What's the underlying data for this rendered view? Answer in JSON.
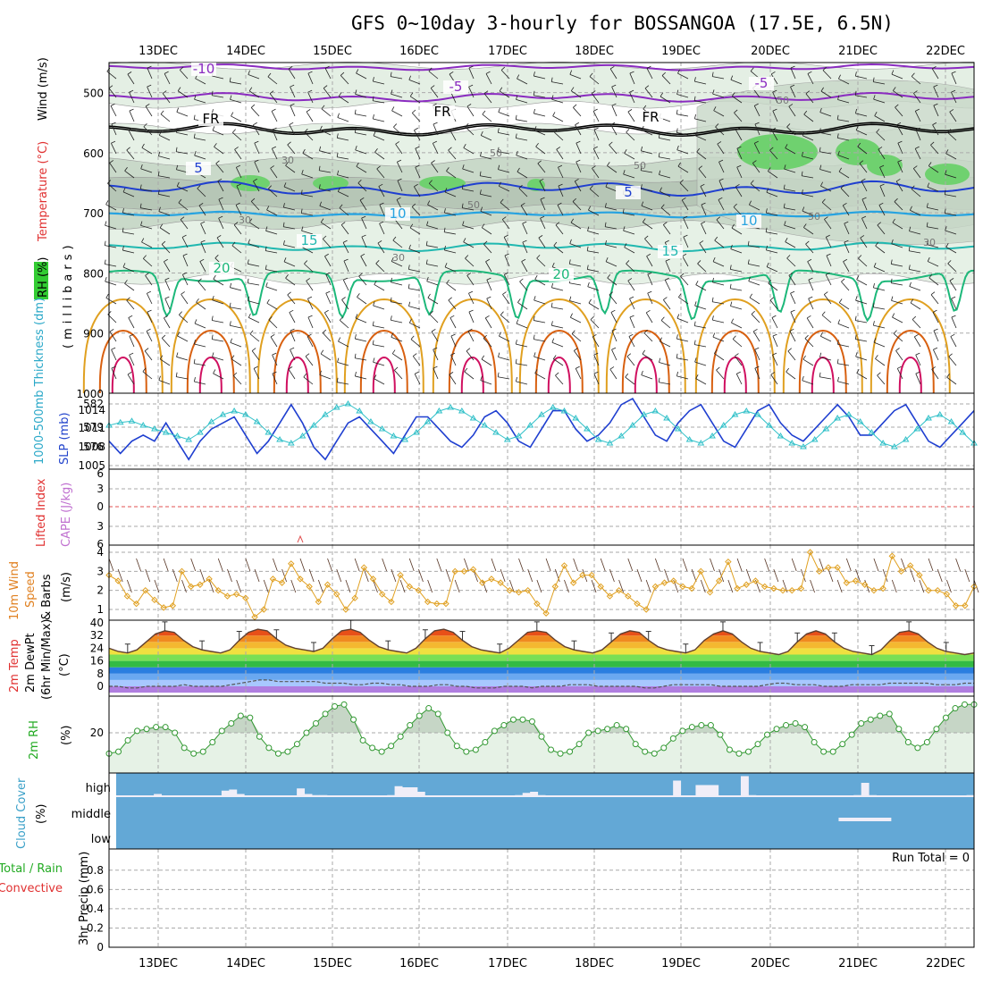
{
  "title": "GFS 0~10day 3-hourly for BOSSANGOA (17.5E, 6.5N)",
  "dates": [
    "13DEC",
    "14DEC",
    "15DEC",
    "16DEC",
    "17DEC",
    "18DEC",
    "19DEC",
    "20DEC",
    "21DEC",
    "22DEC"
  ],
  "colors": {
    "frame": "#000000",
    "grid": "#aaaaaa",
    "purple": "#8a2bc0",
    "blue": "#1f3fd0",
    "lightblue": "#27a3e0",
    "teal": "#20b8b0",
    "green": "#1db87a",
    "orange": "#e0a020",
    "darkorange": "#d86010",
    "magenta": "#d01060",
    "cyan": "#30c0c8",
    "rhgreen": "#33cc33",
    "cloud": "#63a8d6"
  },
  "chart_data": [
    {
      "type": "contour",
      "name": "upper",
      "ylabel_parts": [
        "RH (%)",
        "Temperature (°C)",
        "Wind (m/s)",
        "(millibars)"
      ],
      "y_ticks": [
        "500",
        "600",
        "700",
        "800",
        "900",
        "1000"
      ],
      "ylim": [
        1000,
        450
      ],
      "temperature_labels": [
        "-10",
        "-5",
        "-5",
        "FR",
        "FR",
        "FR",
        "5",
        "5",
        "10",
        "10",
        "15",
        "15",
        "20",
        "20"
      ],
      "rh_labels": [
        "30",
        "50",
        "30",
        "50",
        "50",
        "30",
        "50",
        "50",
        "30"
      ]
    },
    {
      "type": "line",
      "name": "thickness-slp",
      "ylabel_left": "1000-500mb Thickness (dm)",
      "ylabel_right": "SLP (mb)",
      "left_ticks": [
        "582",
        "579",
        "576"
      ],
      "right_ticks": [
        "1014",
        "1011",
        "1008",
        "1005"
      ],
      "series": [
        {
          "name": "SLP (mb)",
          "axis": "right",
          "values": [
            1009,
            1007,
            1009,
            1010,
            1009,
            1012,
            1009,
            1006,
            1009,
            1011,
            1012,
            1013,
            1010,
            1007,
            1009,
            1012,
            1015,
            1012,
            1008,
            1006,
            1009,
            1012,
            1013,
            1011,
            1009,
            1007,
            1010,
            1013,
            1013,
            1011,
            1009,
            1008,
            1010,
            1013,
            1014,
            1012,
            1009,
            1008,
            1011,
            1014,
            1014,
            1011,
            1009,
            1010,
            1012,
            1015,
            1016,
            1013,
            1010,
            1009,
            1012,
            1014,
            1015,
            1012,
            1009,
            1008,
            1011,
            1014,
            1015,
            1012,
            1010,
            1009,
            1011,
            1013,
            1015,
            1013,
            1010,
            1010,
            1012,
            1014,
            1015,
            1012,
            1009,
            1008,
            1010,
            1012,
            1014
          ]
        },
        {
          "name": "Thickness (dm)",
          "axis": "left",
          "values": [
            579,
            579.4,
            579.6,
            579,
            578.5,
            578,
            577.5,
            577,
            578,
            579.5,
            580.5,
            581,
            580.5,
            579.5,
            578,
            577,
            576.5,
            577.5,
            579,
            580.5,
            581.5,
            582,
            581,
            579.5,
            578.5,
            577.5,
            577,
            578,
            579.5,
            581,
            581.5,
            581,
            580,
            579,
            578,
            577,
            577.5,
            579,
            580.5,
            581.5,
            581,
            580,
            578.5,
            577,
            576.5,
            577.5,
            579,
            580.5,
            581,
            580,
            578.5,
            577,
            576.5,
            577.5,
            579,
            580.5,
            581,
            580.5,
            579,
            577.5,
            576.5,
            576,
            577,
            578.5,
            580,
            580.5,
            579.5,
            578,
            576.5,
            576,
            577,
            578.5,
            580,
            580.5,
            579.5,
            578,
            576.5
          ]
        }
      ]
    },
    {
      "type": "line",
      "name": "cape-li",
      "ylabel_left": "Lifted Index",
      "ylabel_right": "CAPE (J/kg)",
      "ticks": [
        "6",
        "3",
        "0",
        "3",
        "6"
      ],
      "ylim": [
        -6,
        6
      ]
    },
    {
      "type": "line",
      "name": "wind10m",
      "ylabel": "10m Wind Speed & Barbs (m/s)",
      "ticks": [
        "4",
        "3",
        "2",
        "1"
      ],
      "ylim": [
        0.6,
        4.2
      ],
      "values": [
        2.8,
        2.5,
        1.7,
        1.3,
        2.0,
        1.5,
        1.1,
        1.2,
        3.0,
        2.2,
        2.3,
        2.6,
        2.0,
        1.7,
        1.8,
        1.6,
        0.6,
        1.0,
        2.6,
        2.4,
        3.4,
        2.6,
        2.2,
        1.4,
        2.3,
        1.8,
        1.0,
        1.6,
        3.2,
        2.6,
        1.8,
        1.4,
        2.8,
        2.2,
        2.0,
        1.4,
        1.3,
        1.3,
        3.0,
        3.0,
        3.1,
        2.4,
        2.6,
        2.4,
        2.0,
        1.9,
        2.0,
        1.3,
        0.8,
        2.2,
        3.3,
        2.4,
        2.8,
        2.8,
        2.2,
        1.7,
        2.0,
        1.7,
        1.3,
        1.0,
        2.2,
        2.4,
        2.5,
        2.2,
        2.1,
        3.0,
        1.9,
        2.5,
        3.5,
        2.1,
        2.3,
        2.5,
        2.2,
        2.1,
        2.0,
        2.0,
        2.1,
        4.0,
        3.0,
        3.2,
        3.2,
        2.4,
        2.5,
        2.3,
        2.0,
        2.1,
        3.8,
        3.0,
        3.3,
        2.8,
        2.0,
        2.0,
        1.8,
        1.2,
        1.2,
        2.2
      ]
    },
    {
      "type": "area",
      "name": "temp2m",
      "ylabel": "2m Temp 2m DewPt (6hr Min/Max) (°C)",
      "ticks": [
        "40",
        "32",
        "24",
        "16",
        "8",
        "0"
      ],
      "ylim": [
        -4,
        40
      ],
      "temperature": [
        24,
        22,
        21,
        23,
        28,
        33,
        35,
        34,
        29,
        25,
        23,
        22,
        21,
        23,
        29,
        34,
        36,
        35,
        30,
        26,
        24,
        23,
        22,
        24,
        30,
        35,
        36,
        34,
        29,
        25,
        23,
        22,
        21,
        24,
        30,
        35,
        36,
        34,
        29,
        25,
        23,
        22,
        21,
        24,
        29,
        34,
        35,
        34,
        29,
        25,
        23,
        22,
        21,
        23,
        28,
        33,
        35,
        34,
        29,
        25,
        23,
        22,
        21,
        23,
        29,
        33,
        35,
        33,
        28,
        24,
        22,
        21,
        20,
        22,
        28,
        33,
        35,
        33,
        28,
        24,
        22,
        21,
        20,
        23,
        29,
        34,
        35,
        33,
        28,
        24,
        22,
        21,
        20,
        21
      ],
      "dewpoint": [
        0,
        0,
        -1,
        -1,
        0,
        0,
        0,
        0,
        1,
        0,
        0,
        0,
        0,
        1,
        2,
        3,
        4,
        4,
        3,
        3,
        3,
        3,
        3,
        2,
        2,
        2,
        1,
        1,
        2,
        2,
        1,
        1,
        0,
        0,
        0,
        1,
        1,
        0,
        0,
        -1,
        -1,
        -1,
        0,
        0,
        0,
        -1,
        0,
        0,
        0,
        1,
        1,
        1,
        0,
        0,
        0,
        0,
        0,
        -1,
        -1,
        0,
        1,
        1,
        1,
        1,
        1,
        0,
        0,
        0,
        0,
        0,
        1,
        2,
        2,
        1,
        1,
        1,
        0,
        0,
        0,
        1,
        1,
        1,
        1,
        2,
        2,
        2,
        2,
        2,
        1,
        1,
        1,
        2,
        2
      ]
    },
    {
      "type": "area",
      "name": "rh2m",
      "ylabel": "2m RH (%)",
      "ticks": [
        "20"
      ],
      "ylim": [
        2,
        38
      ],
      "values": [
        9,
        10,
        16,
        21,
        22,
        23,
        23,
        20,
        12,
        9,
        10,
        15,
        21,
        25,
        29,
        28,
        18,
        12,
        9,
        10,
        14,
        20,
        25,
        30,
        34,
        35,
        27,
        16,
        12,
        10,
        13,
        18,
        24,
        29,
        33,
        30,
        20,
        13,
        10,
        11,
        15,
        21,
        24,
        27,
        27,
        26,
        18,
        11,
        9,
        10,
        14,
        20,
        21,
        22,
        24,
        22,
        14,
        10,
        9,
        12,
        17,
        21,
        23,
        24,
        24,
        19,
        11,
        9,
        10,
        14,
        19,
        22,
        24,
        25,
        23,
        15,
        10,
        10,
        14,
        19,
        25,
        27,
        29,
        30,
        22,
        15,
        12,
        15,
        22,
        28,
        33,
        35,
        35
      ]
    },
    {
      "type": "bar",
      "name": "cloud",
      "ylabel": "Cloud Cover (%)",
      "levels": [
        "high",
        "middle",
        "low"
      ],
      "high": [
        0,
        0,
        0,
        0,
        0,
        10,
        0,
        0,
        0,
        0,
        0,
        0,
        0,
        0,
        25,
        30,
        10,
        0,
        0,
        0,
        0,
        0,
        0,
        0,
        35,
        10,
        5,
        5,
        0,
        0,
        0,
        0,
        0,
        0,
        0,
        0,
        5,
        45,
        40,
        40,
        20,
        0,
        0,
        0,
        0,
        0,
        0,
        0,
        0,
        0,
        0,
        0,
        0,
        5,
        15,
        20,
        5,
        0,
        0,
        0,
        0,
        0,
        0,
        0,
        0,
        0,
        0,
        0,
        0,
        0,
        0,
        0,
        0,
        0,
        70,
        0,
        0,
        50,
        50,
        50,
        0,
        0,
        0,
        90,
        5,
        0,
        0,
        0,
        0,
        0,
        0,
        0,
        0,
        0,
        0,
        0,
        0,
        0,
        5,
        60,
        5,
        0,
        0,
        0,
        0,
        0,
        0,
        0,
        0,
        0,
        0,
        0,
        0,
        5
      ],
      "middle_events": [
        [
          96,
          103
        ],
        [
          125,
          127
        ]
      ],
      "run_total": "Run Total = 0"
    },
    {
      "type": "bar",
      "name": "precip",
      "ylabel_parts": [
        "Total / Rain",
        "Convective",
        "3hr Precip (mm)"
      ],
      "ticks": [
        "0.8",
        "0.6",
        "0.4",
        "0.2",
        "0"
      ],
      "ylim": [
        0,
        0.9
      ],
      "values": []
    }
  ]
}
